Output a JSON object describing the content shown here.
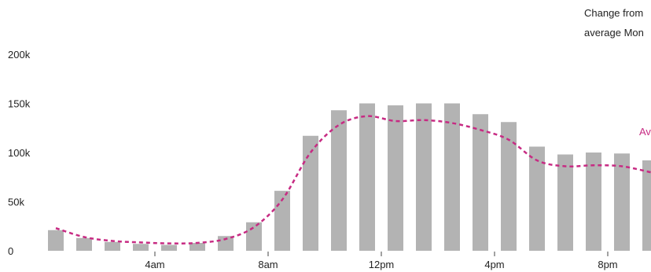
{
  "chart_data": {
    "type": "bar",
    "title": "",
    "xlabel": "",
    "ylabel": "",
    "ylim": [
      0,
      200000
    ],
    "y_ticks": [
      {
        "value": 0,
        "label": "0"
      },
      {
        "value": 50000,
        "label": "50k"
      },
      {
        "value": 100000,
        "label": "100k"
      },
      {
        "value": 150000,
        "label": "150k"
      },
      {
        "value": 200000,
        "label": "200k"
      }
    ],
    "x_ticks": [
      {
        "hour": 4,
        "label": "4am"
      },
      {
        "hour": 8,
        "label": "8am"
      },
      {
        "hour": 12,
        "label": "12pm"
      },
      {
        "hour": 16,
        "label": "4pm"
      },
      {
        "hour": 20,
        "label": "8pm"
      }
    ],
    "categories": [
      0,
      1,
      2,
      3,
      4,
      5,
      6,
      7,
      8,
      9,
      10,
      11,
      12,
      13,
      14,
      15,
      16,
      17,
      18,
      19,
      20,
      21
    ],
    "grid": false,
    "series": [
      {
        "type": "bar",
        "color": "#b3b3b3",
        "values": [
          21000,
          13000,
          9000,
          7000,
          6000,
          8000,
          15000,
          29000,
          61000,
          117000,
          143000,
          150000,
          148000,
          150000,
          150000,
          139000,
          131000,
          106000,
          98000,
          100000,
          99000,
          92000
        ]
      },
      {
        "type": "line",
        "style": "dashed",
        "color": "#c72b83",
        "x": [
          0,
          1,
          2,
          3,
          4,
          5,
          6,
          7,
          8,
          9,
          10,
          11,
          12,
          13,
          14,
          15,
          16,
          17,
          18,
          19,
          20,
          21
        ],
        "values": [
          23000,
          14000,
          10000,
          8500,
          7500,
          8000,
          12000,
          24000,
          52000,
          100000,
          128000,
          137000,
          132000,
          133000,
          130000,
          123000,
          113000,
          92000,
          86000,
          87000,
          86000,
          80000
        ]
      }
    ],
    "annotations": [
      {
        "text": "Change from",
        "color": "#222222"
      },
      {
        "text": "average Mon",
        "color": "#222222"
      },
      {
        "text": "Av",
        "color": "#c72b83"
      }
    ]
  }
}
